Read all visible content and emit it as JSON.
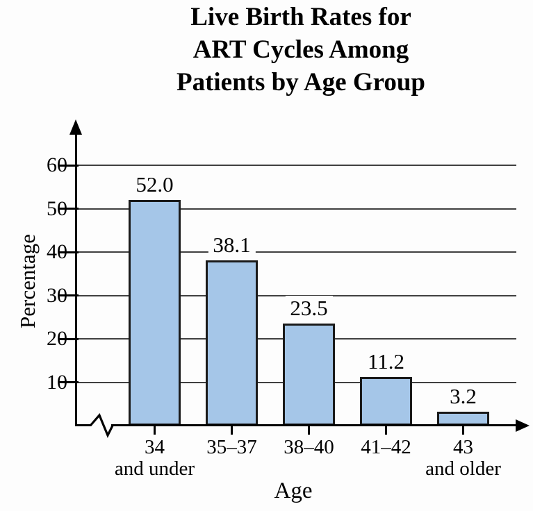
{
  "title": {
    "lines": [
      "Live Birth Rates for",
      "ART Cycles Among",
      "Patients by Age Group"
    ]
  },
  "chart_data": {
    "type": "bar",
    "title": "Live Birth Rates for ART Cycles Among Patients by Age Group",
    "xlabel": "Age",
    "ylabel": "Percentage",
    "categories": [
      "34 and under",
      "35–37",
      "38–40",
      "41–42",
      "43 and older"
    ],
    "category_label_lines": [
      [
        "34",
        "and under"
      ],
      [
        "35–37"
      ],
      [
        "38–40"
      ],
      [
        "41–42"
      ],
      [
        "43",
        "and older"
      ]
    ],
    "values": [
      52.0,
      38.1,
      23.5,
      11.2,
      3.2
    ],
    "value_labels": [
      "52.0",
      "38.1",
      "23.5",
      "11.2",
      "3.2"
    ],
    "yticks": [
      10,
      20,
      30,
      40,
      50,
      60
    ],
    "ylim": [
      0,
      67
    ],
    "grid": "horizontal-lines",
    "legend_position": "none",
    "axis_break": "x-axis-near-origin",
    "colors": {
      "bar_fill": "#a5c6e8",
      "bar_border": "#1a1a1a",
      "gridline": "#404040",
      "axis": "#000000",
      "text": "#000000",
      "background": "#fdfdfd"
    }
  }
}
